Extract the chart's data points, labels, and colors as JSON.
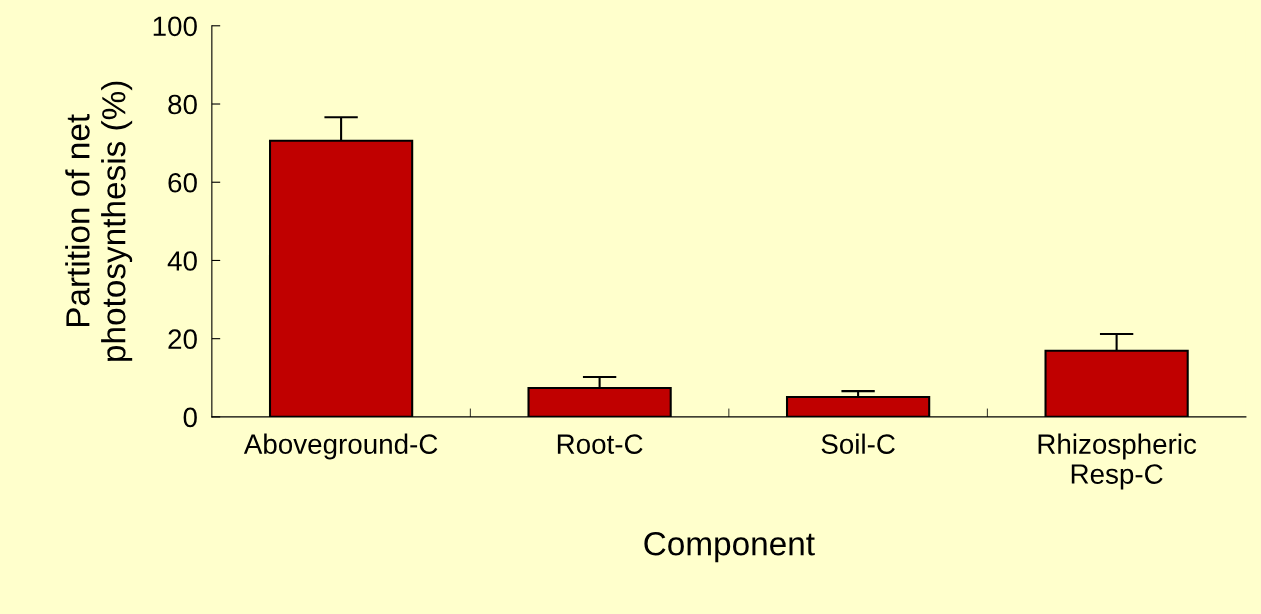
{
  "chart_data": {
    "type": "bar",
    "xlabel": "Component",
    "ylabel": "Partition of net\nphotosynthesis (%)",
    "categories": [
      "Aboveground-C",
      "Root-C",
      "Soil-C",
      "Rhizospheric\nResp-C"
    ],
    "values": [
      70.6,
      7.4,
      5.1,
      16.9
    ],
    "errors": [
      6.0,
      2.8,
      1.5,
      4.3
    ],
    "color": "#c00000",
    "ylim": [
      0,
      100
    ],
    "yticks": [
      0,
      20,
      40,
      60,
      80,
      100
    ],
    "grid": false
  }
}
